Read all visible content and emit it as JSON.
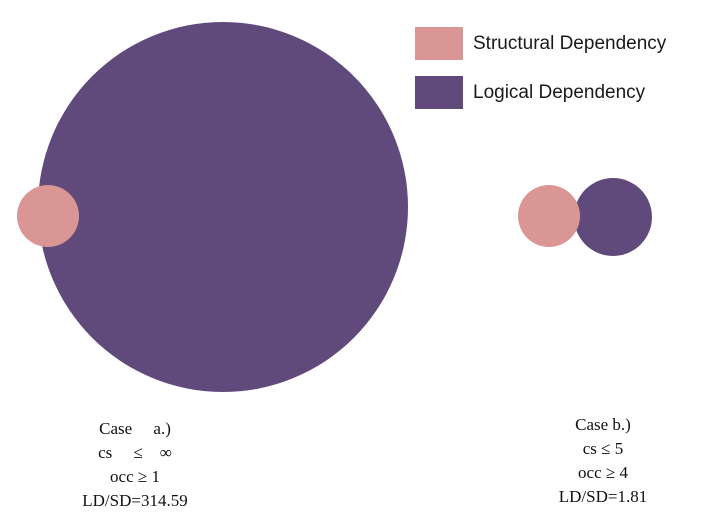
{
  "colors": {
    "structural": "#d99694",
    "logical": "#604a7b"
  },
  "legend": [
    {
      "label": "Structural Dependency",
      "color_key": "structural"
    },
    {
      "label": "Logical Dependency",
      "color_key": "logical"
    }
  ],
  "case_a": {
    "line1": "Case     a.)",
    "line2": "cs     ≤    ∞",
    "line3": "occ ≥ 1",
    "line4": "LD/SD=314.59"
  },
  "case_b": {
    "line1": "Case b.)",
    "line2": "cs ≤ 5",
    "line3": "occ ≥ 4",
    "line4": "LD/SD=1.81"
  }
}
